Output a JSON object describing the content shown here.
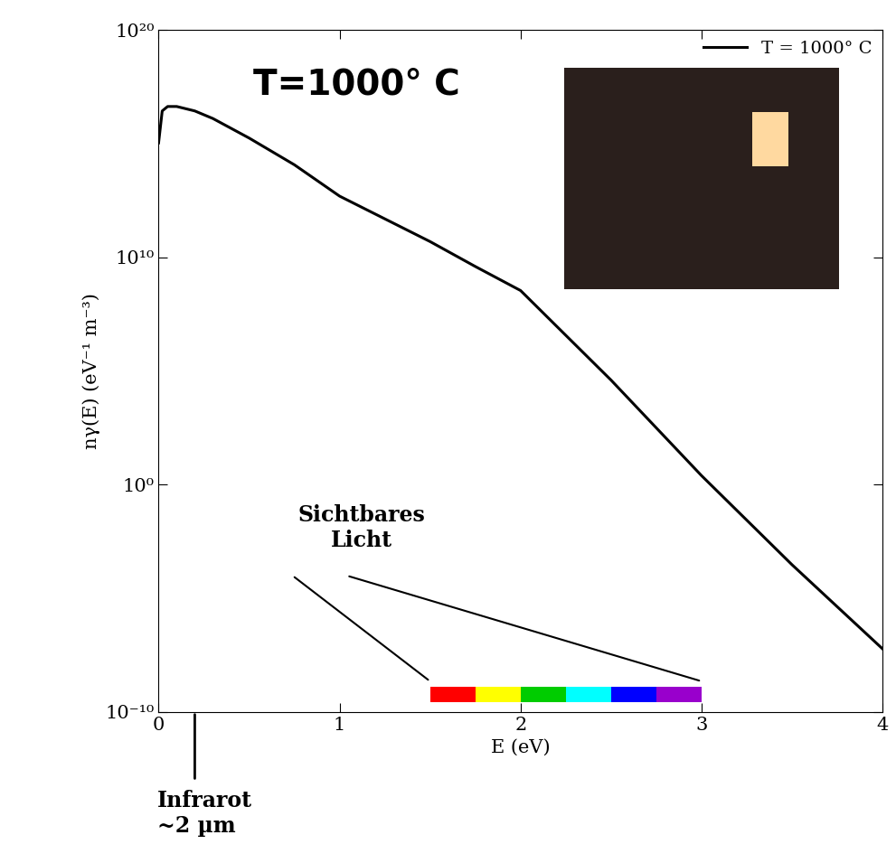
{
  "chart_data": {
    "type": "line",
    "title_text": "T=1000° C",
    "x_label": "E (eV)",
    "y_label": "nγ(E) (eV⁻¹ m⁻³)",
    "series": [
      {
        "name": "T = 1000° C",
        "color": "#000000",
        "line_style": "solid",
        "x": [
          0.0,
          0.02,
          0.05,
          0.1,
          0.2,
          0.3,
          0.5,
          0.75,
          1.0,
          1.25,
          1.5,
          1.75,
          2.0,
          2.5,
          3.0,
          3.5,
          4.0
        ],
        "values": [
          1100000000000000.0,
          2.8e+16,
          4.4e+16,
          4.4e+16,
          2.8e+16,
          1.3e+16,
          1800000000000000.0,
          120000000000000.0,
          5000000000000.0,
          500000000000.0,
          50000000000.0,
          4000000000.0,
          350000000.0,
          40000.0,
          2.5,
          0.0003,
          6e-08
        ]
      }
    ],
    "xlim": [
      0,
      4
    ],
    "xticks": [
      0,
      1,
      2,
      3,
      4
    ],
    "ylim": [
      1e-10,
      1e+20
    ],
    "yticks": [
      {
        "value": 1e-10,
        "label": "10⁻¹⁰"
      },
      {
        "value": 1,
        "label": "10⁰"
      },
      {
        "value": 10000000000.0,
        "label": "10¹⁰"
      },
      {
        "value": 1e+20,
        "label": "10²⁰"
      }
    ],
    "log": "y",
    "grid": false,
    "legend": "upper right",
    "visible_band": {
      "text": "Sichtbares\nLicht",
      "x": [
        1.5,
        1.75,
        2.0,
        2.25,
        2.5,
        2.75,
        3.0
      ],
      "colors": [
        "#ff0000",
        "#ffff00",
        "#00cc00",
        "#00ffff",
        "#0000ff",
        "#9900cc"
      ]
    },
    "infrared_marker": {
      "text": "Infrarot\n~2 µm",
      "x": 0.2
    }
  }
}
